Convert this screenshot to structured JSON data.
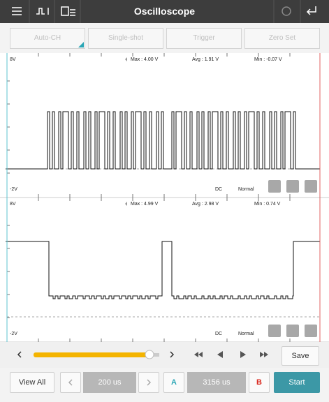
{
  "header": {
    "title": "Oscilloscope"
  },
  "toolbar": {
    "buttons": [
      "Auto-CH",
      "Single-shot",
      "Trigger",
      "Zero Set"
    ]
  },
  "channels": [
    {
      "top_label": "8V",
      "max": "Max : 4.00 V",
      "avg": "Avg : 1.91 V",
      "min": "Min : -0.07 V",
      "bottom_label": "-2V",
      "coupling": "DC",
      "mode": "Normal"
    },
    {
      "top_label": "8V",
      "max": "Max : 4.99 V",
      "avg": "Avg : 2.98 V",
      "min": "Min : 0.74 V",
      "bottom_label": "-2V",
      "coupling": "DC",
      "mode": "Normal"
    }
  ],
  "controls": {
    "save": "Save",
    "view_all": "View All",
    "timebase": "200 us",
    "cursor_a": "A",
    "cursor_time": "3156 us",
    "cursor_b": "B",
    "start": "Start"
  }
}
